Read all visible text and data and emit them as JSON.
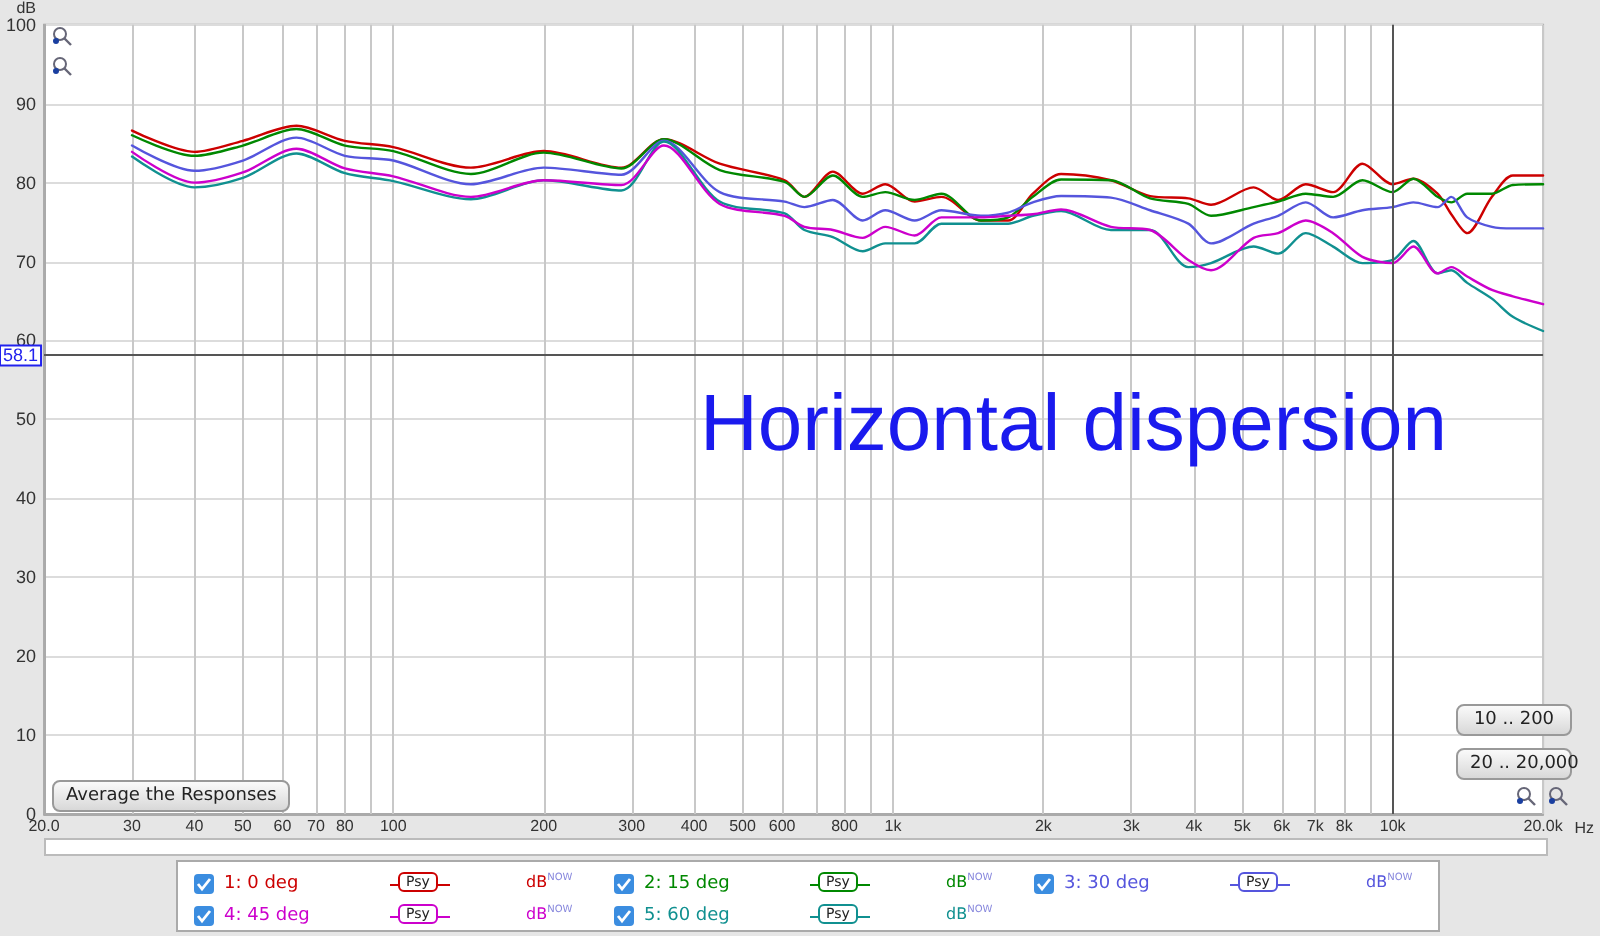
{
  "chart_data": {
    "type": "line",
    "xlabel": "Hz",
    "ylabel": "dB",
    "x": [
      30,
      40,
      50,
      64,
      80,
      100,
      143,
      200,
      286,
      348,
      450,
      607,
      665,
      758,
      870,
      965,
      1105,
      1250,
      1500,
      1700,
      1905,
      2170,
      2730,
      3270,
      3900,
      4330,
      5270,
      5900,
      6700,
      7600,
      8700,
      10000,
      11000,
      12300,
      13100,
      14100,
      15800,
      17400,
      20000
    ],
    "series": [
      {
        "name": "1: 0 deg",
        "color": "#cc0000",
        "values": [
          86.6,
          83.9,
          85.3,
          87.2,
          85.3,
          84.5,
          81.9,
          84.0,
          81.9,
          85.5,
          82.4,
          80.3,
          78.2,
          81.4,
          78.6,
          79.8,
          77.6,
          78.2,
          75.2,
          75.2,
          78.6,
          81.1,
          80.3,
          78.3,
          78.0,
          77.2,
          79.4,
          77.8,
          79.8,
          78.8,
          82.4,
          79.8,
          80.5,
          78.6,
          76.0,
          73.6,
          78.2,
          80.9,
          80.9
        ]
      },
      {
        "name": "2: 15 deg",
        "color": "#008800",
        "values": [
          86.0,
          83.4,
          84.7,
          86.8,
          84.7,
          84.0,
          81.1,
          83.8,
          81.8,
          85.5,
          81.6,
          80.1,
          78.2,
          80.9,
          78.2,
          78.8,
          77.8,
          78.6,
          75.2,
          75.6,
          78.2,
          80.4,
          80.3,
          78.0,
          77.3,
          75.8,
          76.9,
          77.6,
          78.6,
          78.2,
          80.3,
          78.8,
          80.5,
          78.2,
          77.5,
          78.6,
          78.6,
          79.7,
          79.8
        ]
      },
      {
        "name": "3: 30 deg",
        "color": "#5555dd",
        "values": [
          84.7,
          81.5,
          82.8,
          85.7,
          83.4,
          82.8,
          79.8,
          81.9,
          81.0,
          85.3,
          78.8,
          77.6,
          76.9,
          77.8,
          75.2,
          76.5,
          75.2,
          76.5,
          75.8,
          76.2,
          77.5,
          78.3,
          78.1,
          76.5,
          74.8,
          72.3,
          74.8,
          75.8,
          77.5,
          75.6,
          76.5,
          76.9,
          77.5,
          76.9,
          78.2,
          75.6,
          74.4,
          74.2,
          74.2
        ]
      },
      {
        "name": "4: 45 deg",
        "color": "#cc00cc",
        "values": [
          83.9,
          80.0,
          81.3,
          84.3,
          81.8,
          80.8,
          78.2,
          80.3,
          79.7,
          84.7,
          77.3,
          75.8,
          74.4,
          74.0,
          73.0,
          74.4,
          73.3,
          75.6,
          75.6,
          75.8,
          76.0,
          76.6,
          74.4,
          74.0,
          70.2,
          68.9,
          73.0,
          73.6,
          75.2,
          73.6,
          70.6,
          69.8,
          71.9,
          68.5,
          69.3,
          68.1,
          66.4,
          65.6,
          64.6
        ]
      },
      {
        "name": "5: 60 deg",
        "color": "#109090",
        "values": [
          83.3,
          79.4,
          80.6,
          83.7,
          81.2,
          80.2,
          77.9,
          80.3,
          79.0,
          85.2,
          77.6,
          76.1,
          74.0,
          73.1,
          71.3,
          72.3,
          72.3,
          74.8,
          74.8,
          74.8,
          75.8,
          76.4,
          74.0,
          74.0,
          69.3,
          69.8,
          71.9,
          71.0,
          73.6,
          71.9,
          69.8,
          70.2,
          72.6,
          68.5,
          68.9,
          67.3,
          65.3,
          63.0,
          61.2
        ]
      }
    ],
    "log": "x",
    "xlim": [
      20,
      20000
    ],
    "xticks": [
      {
        "value": 20,
        "label": "20.0"
      },
      30,
      40,
      50,
      60,
      70,
      80,
      {
        "value": 90,
        "label": null
      },
      100,
      200,
      300,
      400,
      500,
      600,
      {
        "value": 700,
        "label": null
      },
      800,
      {
        "value": 900,
        "label": null
      },
      {
        "value": 1000,
        "label": "1k"
      },
      {
        "value": 2000,
        "label": "2k"
      },
      {
        "value": 3000,
        "label": "3k"
      },
      {
        "value": 4000,
        "label": "4k"
      },
      {
        "value": 5000,
        "label": "5k"
      },
      {
        "value": 6000,
        "label": "6k"
      },
      {
        "value": 7000,
        "label": "7k"
      },
      {
        "value": 8000,
        "label": "8k"
      },
      {
        "value": 9000,
        "label": null
      },
      {
        "value": 10000,
        "label": "10k"
      },
      {
        "value": 20000,
        "label": "20.0k"
      }
    ],
    "ylim": [
      0,
      100
    ],
    "yticks": [
      0,
      10,
      20,
      30,
      40,
      50,
      60,
      70,
      80,
      90,
      100
    ],
    "ref_lines": [
      {
        "axis": "y",
        "value": 58.1,
        "label": "58.1",
        "color": "#555555"
      },
      {
        "axis": "x",
        "value": 10000,
        "color": "#555555"
      }
    ],
    "annotations": [
      "Horizontal dispersion",
      "Average the Responses",
      "10 .. 200",
      "20 .. 20,000",
      "Psy",
      "dB$^{NOW}$",
      "Psy",
      "dB$^{NOW}$",
      "Psy",
      "dB$^{NOW}$",
      "Psy",
      "dB$^{NOW}$",
      "Psy",
      "dB$^{NOW}$"
    ],
    "grid": true,
    "legend": "bottom",
    "marker": "none",
    "line_style": "solid"
  }
}
